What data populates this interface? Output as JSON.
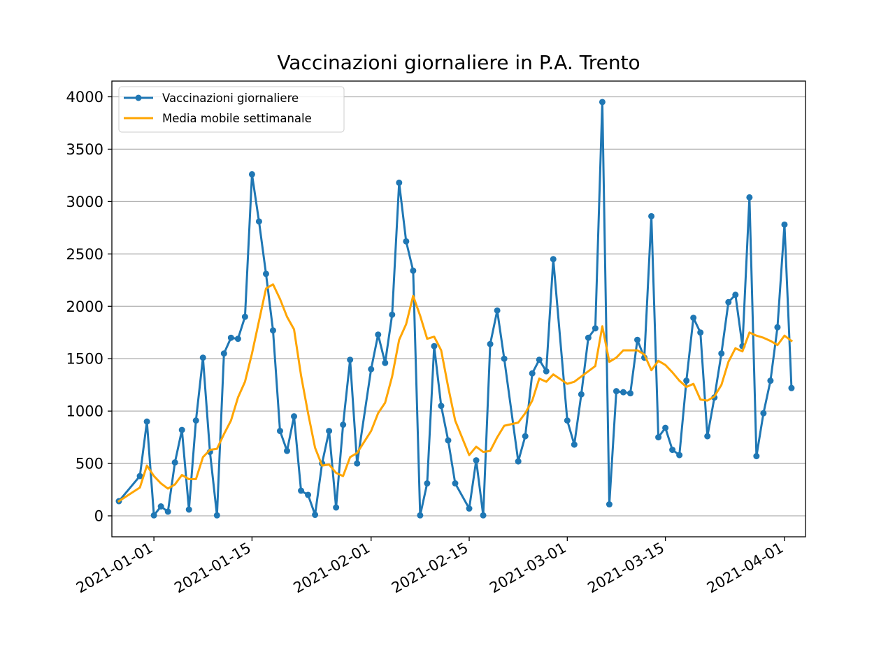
{
  "chart_data": {
    "type": "line",
    "title": "Vaccinazioni giornaliere in P.A. Trento",
    "xlabel": "",
    "ylabel": "",
    "xlim": [
      "2020-12-26",
      "2021-04-04"
    ],
    "ylim": [
      -200,
      4150
    ],
    "yticks": [
      0,
      500,
      1000,
      1500,
      2000,
      2500,
      3000,
      3500,
      4000
    ],
    "xticks": [
      "2021-01-01",
      "2021-01-15",
      "2021-02-01",
      "2021-02-15",
      "2021-03-01",
      "2021-03-15",
      "2021-04-01"
    ],
    "grid": "y",
    "legend_position": "top-left",
    "colors": {
      "daily": "#1f77b4",
      "moving_avg": "#ffa500"
    },
    "series": [
      {
        "name": "Vaccinazioni giornaliere",
        "style": "line-with-dot-markers",
        "points": [
          [
            "2020-12-27",
            140
          ],
          [
            "2020-12-30",
            380
          ],
          [
            "2020-12-31",
            900
          ],
          [
            "2021-01-01",
            5
          ],
          [
            "2021-01-02",
            90
          ],
          [
            "2021-01-03",
            40
          ],
          [
            "2021-01-04",
            510
          ],
          [
            "2021-01-05",
            820
          ],
          [
            "2021-01-06",
            60
          ],
          [
            "2021-01-07",
            910
          ],
          [
            "2021-01-08",
            1510
          ],
          [
            "2021-01-09",
            610
          ],
          [
            "2021-01-10",
            5
          ],
          [
            "2021-01-11",
            1550
          ],
          [
            "2021-01-12",
            1700
          ],
          [
            "2021-01-13",
            1690
          ],
          [
            "2021-01-14",
            1900
          ],
          [
            "2021-01-15",
            3260
          ],
          [
            "2021-01-16",
            2810
          ],
          [
            "2021-01-17",
            2310
          ],
          [
            "2021-01-18",
            1770
          ],
          [
            "2021-01-19",
            810
          ],
          [
            "2021-01-20",
            620
          ],
          [
            "2021-01-21",
            950
          ],
          [
            "2021-01-22",
            240
          ],
          [
            "2021-01-23",
            200
          ],
          [
            "2021-01-24",
            10
          ],
          [
            "2021-01-25",
            500
          ],
          [
            "2021-01-26",
            810
          ],
          [
            "2021-01-27",
            80
          ],
          [
            "2021-01-28",
            870
          ],
          [
            "2021-01-29",
            1490
          ],
          [
            "2021-01-30",
            500
          ],
          [
            "2021-02-01",
            1400
          ],
          [
            "2021-02-02",
            1730
          ],
          [
            "2021-02-03",
            1460
          ],
          [
            "2021-02-04",
            1920
          ],
          [
            "2021-02-05",
            3180
          ],
          [
            "2021-02-06",
            2620
          ],
          [
            "2021-02-07",
            2340
          ],
          [
            "2021-02-08",
            5
          ],
          [
            "2021-02-09",
            310
          ],
          [
            "2021-02-10",
            1620
          ],
          [
            "2021-02-11",
            1050
          ],
          [
            "2021-02-12",
            720
          ],
          [
            "2021-02-13",
            310
          ],
          [
            "2021-02-15",
            70
          ],
          [
            "2021-02-16",
            530
          ],
          [
            "2021-02-17",
            5
          ],
          [
            "2021-02-18",
            1640
          ],
          [
            "2021-02-19",
            1960
          ],
          [
            "2021-02-20",
            1500
          ],
          [
            "2021-02-22",
            520
          ],
          [
            "2021-02-23",
            760
          ],
          [
            "2021-02-24",
            1360
          ],
          [
            "2021-02-25",
            1490
          ],
          [
            "2021-02-26",
            1380
          ],
          [
            "2021-02-27",
            2450
          ],
          [
            "2021-03-01",
            910
          ],
          [
            "2021-03-02",
            680
          ],
          [
            "2021-03-03",
            1160
          ],
          [
            "2021-03-04",
            1700
          ],
          [
            "2021-03-05",
            1790
          ],
          [
            "2021-03-06",
            3950
          ],
          [
            "2021-03-07",
            110
          ],
          [
            "2021-03-08",
            1190
          ],
          [
            "2021-03-09",
            1180
          ],
          [
            "2021-03-10",
            1170
          ],
          [
            "2021-03-11",
            1680
          ],
          [
            "2021-03-12",
            1510
          ],
          [
            "2021-03-13",
            2860
          ],
          [
            "2021-03-14",
            750
          ],
          [
            "2021-03-15",
            840
          ],
          [
            "2021-03-16",
            630
          ],
          [
            "2021-03-17",
            580
          ],
          [
            "2021-03-18",
            1290
          ],
          [
            "2021-03-19",
            1890
          ],
          [
            "2021-03-20",
            1750
          ],
          [
            "2021-03-21",
            760
          ],
          [
            "2021-03-22",
            1130
          ],
          [
            "2021-03-23",
            1550
          ],
          [
            "2021-03-24",
            2040
          ],
          [
            "2021-03-25",
            2110
          ],
          [
            "2021-03-26",
            1620
          ],
          [
            "2021-03-27",
            3040
          ],
          [
            "2021-03-28",
            570
          ],
          [
            "2021-03-29",
            980
          ],
          [
            "2021-03-30",
            1290
          ],
          [
            "2021-03-31",
            1800
          ],
          [
            "2021-04-01",
            2780
          ],
          [
            "2021-04-02",
            1220
          ]
        ]
      },
      {
        "name": "Media mobile settimanale",
        "style": "line",
        "points": [
          [
            "2020-12-27",
            140
          ],
          [
            "2020-12-30",
            270
          ],
          [
            "2020-12-31",
            480
          ],
          [
            "2021-01-01",
            380
          ],
          [
            "2021-01-02",
            310
          ],
          [
            "2021-01-03",
            260
          ],
          [
            "2021-01-04",
            300
          ],
          [
            "2021-01-05",
            390
          ],
          [
            "2021-01-06",
            350
          ],
          [
            "2021-01-07",
            350
          ],
          [
            "2021-01-08",
            560
          ],
          [
            "2021-01-09",
            630
          ],
          [
            "2021-01-10",
            640
          ],
          [
            "2021-01-11",
            780
          ],
          [
            "2021-01-12",
            910
          ],
          [
            "2021-01-13",
            1130
          ],
          [
            "2021-01-14",
            1280
          ],
          [
            "2021-01-15",
            1550
          ],
          [
            "2021-01-16",
            1860
          ],
          [
            "2021-01-17",
            2170
          ],
          [
            "2021-01-18",
            2210
          ],
          [
            "2021-01-19",
            2070
          ],
          [
            "2021-01-20",
            1900
          ],
          [
            "2021-01-21",
            1780
          ],
          [
            "2021-01-22",
            1340
          ],
          [
            "2021-01-23",
            980
          ],
          [
            "2021-01-24",
            650
          ],
          [
            "2021-01-25",
            480
          ],
          [
            "2021-01-26",
            490
          ],
          [
            "2021-01-27",
            410
          ],
          [
            "2021-01-28",
            380
          ],
          [
            "2021-01-29",
            560
          ],
          [
            "2021-01-30",
            600
          ],
          [
            "2021-02-01",
            810
          ],
          [
            "2021-02-02",
            980
          ],
          [
            "2021-02-03",
            1080
          ],
          [
            "2021-02-04",
            1330
          ],
          [
            "2021-02-05",
            1680
          ],
          [
            "2021-02-06",
            1830
          ],
          [
            "2021-02-07",
            2100
          ],
          [
            "2021-02-08",
            1910
          ],
          [
            "2021-02-09",
            1690
          ],
          [
            "2021-02-10",
            1710
          ],
          [
            "2021-02-11",
            1580
          ],
          [
            "2021-02-12",
            1230
          ],
          [
            "2021-02-13",
            910
          ],
          [
            "2021-02-15",
            580
          ],
          [
            "2021-02-16",
            660
          ],
          [
            "2021-02-17",
            610
          ],
          [
            "2021-02-18",
            620
          ],
          [
            "2021-02-19",
            750
          ],
          [
            "2021-02-20",
            860
          ],
          [
            "2021-02-22",
            890
          ],
          [
            "2021-02-23",
            980
          ],
          [
            "2021-02-24",
            1100
          ],
          [
            "2021-02-25",
            1310
          ],
          [
            "2021-02-26",
            1280
          ],
          [
            "2021-02-27",
            1350
          ],
          [
            "2021-03-01",
            1260
          ],
          [
            "2021-03-02",
            1280
          ],
          [
            "2021-03-03",
            1330
          ],
          [
            "2021-03-04",
            1380
          ],
          [
            "2021-03-05",
            1430
          ],
          [
            "2021-03-06",
            1810
          ],
          [
            "2021-03-07",
            1470
          ],
          [
            "2021-03-08",
            1510
          ],
          [
            "2021-03-09",
            1580
          ],
          [
            "2021-03-10",
            1580
          ],
          [
            "2021-03-11",
            1580
          ],
          [
            "2021-03-12",
            1540
          ],
          [
            "2021-03-13",
            1390
          ],
          [
            "2021-03-14",
            1480
          ],
          [
            "2021-03-15",
            1440
          ],
          [
            "2021-03-16",
            1370
          ],
          [
            "2021-03-17",
            1290
          ],
          [
            "2021-03-18",
            1230
          ],
          [
            "2021-03-19",
            1260
          ],
          [
            "2021-03-20",
            1110
          ],
          [
            "2021-03-21",
            1100
          ],
          [
            "2021-03-22",
            1140
          ],
          [
            "2021-03-23",
            1250
          ],
          [
            "2021-03-24",
            1470
          ],
          [
            "2021-03-25",
            1600
          ],
          [
            "2021-03-26",
            1570
          ],
          [
            "2021-03-27",
            1750
          ],
          [
            "2021-03-28",
            1720
          ],
          [
            "2021-03-29",
            1700
          ],
          [
            "2021-03-30",
            1670
          ],
          [
            "2021-03-31",
            1630
          ],
          [
            "2021-04-01",
            1720
          ],
          [
            "2021-04-02",
            1670
          ]
        ]
      }
    ]
  }
}
